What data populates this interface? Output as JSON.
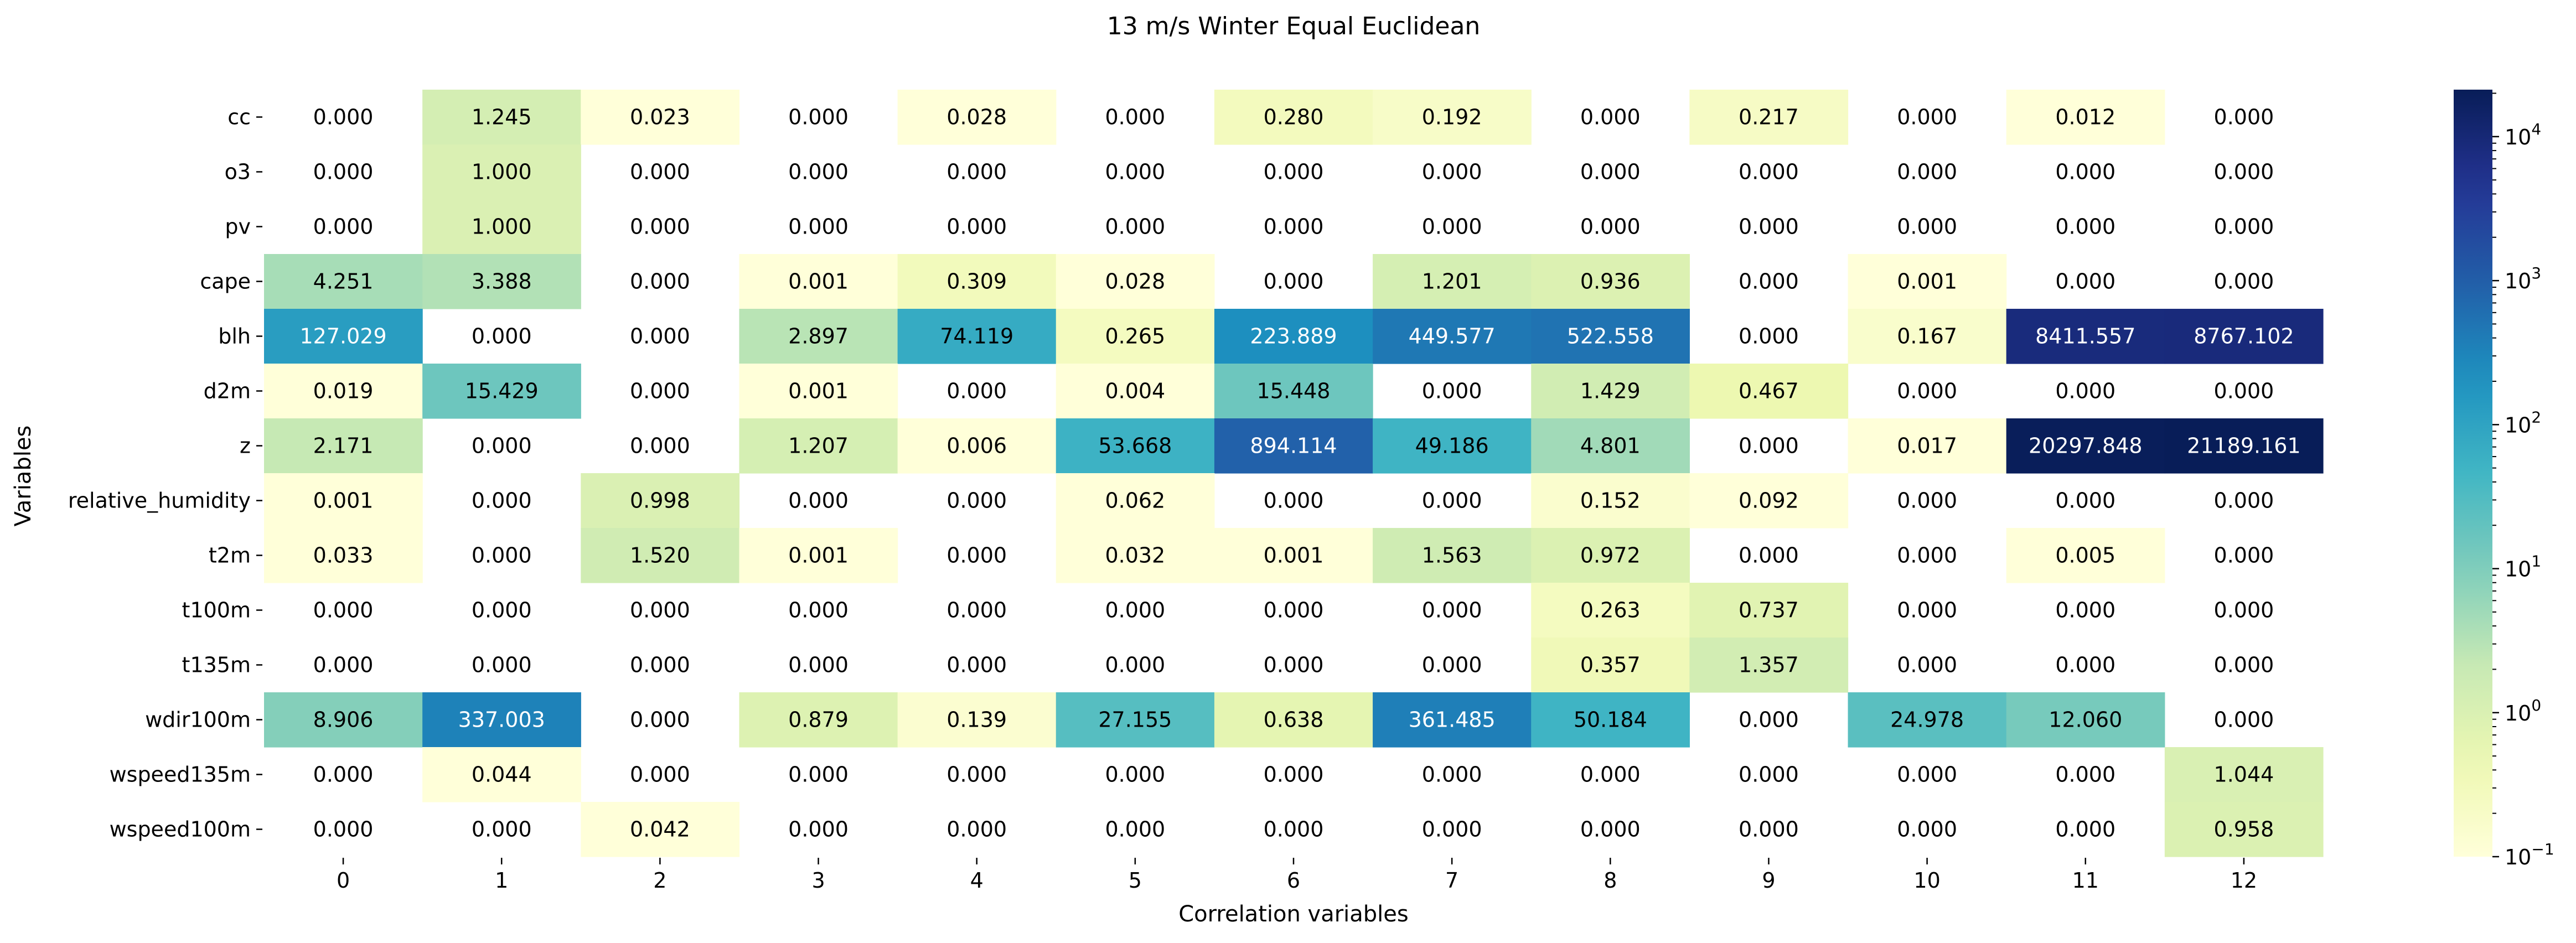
{
  "chart_data": {
    "type": "heatmap",
    "title": "13 m/s Winter Equal Euclidean",
    "xlabel": "Correlation variables",
    "ylabel": "Variables",
    "x_categories": [
      "0",
      "1",
      "2",
      "3",
      "4",
      "5",
      "6",
      "7",
      "8",
      "9",
      "10",
      "11",
      "12"
    ],
    "y_categories": [
      "cc",
      "o3",
      "pv",
      "cape",
      "blh",
      "d2m",
      "z",
      "relative_humidity",
      "t2m",
      "t100m",
      "t135m",
      "wdir100m",
      "wspeed135m",
      "wspeed100m"
    ],
    "values": [
      [
        "0.000",
        "1.245",
        "0.023",
        "0.000",
        "0.028",
        "0.000",
        "0.280",
        "0.192",
        "0.000",
        "0.217",
        "0.000",
        "0.012",
        "0.000"
      ],
      [
        "0.000",
        "1.000",
        "0.000",
        "0.000",
        "0.000",
        "0.000",
        "0.000",
        "0.000",
        "0.000",
        "0.000",
        "0.000",
        "0.000",
        "0.000"
      ],
      [
        "0.000",
        "1.000",
        "0.000",
        "0.000",
        "0.000",
        "0.000",
        "0.000",
        "0.000",
        "0.000",
        "0.000",
        "0.000",
        "0.000",
        "0.000"
      ],
      [
        "4.251",
        "3.388",
        "0.000",
        "0.001",
        "0.309",
        "0.028",
        "0.000",
        "1.201",
        "0.936",
        "0.000",
        "0.001",
        "0.000",
        "0.000"
      ],
      [
        "127.029",
        "0.000",
        "0.000",
        "2.897",
        "74.119",
        "0.265",
        "223.889",
        "449.577",
        "522.558",
        "0.000",
        "0.167",
        "8411.557",
        "8767.102"
      ],
      [
        "0.019",
        "15.429",
        "0.000",
        "0.001",
        "0.000",
        "0.004",
        "15.448",
        "0.000",
        "1.429",
        "0.467",
        "0.000",
        "0.000",
        "0.000"
      ],
      [
        "2.171",
        "0.000",
        "0.000",
        "1.207",
        "0.006",
        "53.668",
        "894.114",
        "49.186",
        "4.801",
        "0.000",
        "0.017",
        "20297.848",
        "21189.161"
      ],
      [
        "0.001",
        "0.000",
        "0.998",
        "0.000",
        "0.000",
        "0.062",
        "0.000",
        "0.000",
        "0.152",
        "0.092",
        "0.000",
        "0.000",
        "0.000"
      ],
      [
        "0.033",
        "0.000",
        "1.520",
        "0.001",
        "0.000",
        "0.032",
        "0.001",
        "1.563",
        "0.972",
        "0.000",
        "0.000",
        "0.005",
        "0.000"
      ],
      [
        "0.000",
        "0.000",
        "0.000",
        "0.000",
        "0.000",
        "0.000",
        "0.000",
        "0.000",
        "0.263",
        "0.737",
        "0.000",
        "0.000",
        "0.000"
      ],
      [
        "0.000",
        "0.000",
        "0.000",
        "0.000",
        "0.000",
        "0.000",
        "0.000",
        "0.000",
        "0.357",
        "1.357",
        "0.000",
        "0.000",
        "0.000"
      ],
      [
        "8.906",
        "337.003",
        "0.000",
        "0.879",
        "0.139",
        "27.155",
        "0.638",
        "361.485",
        "50.184",
        "0.000",
        "24.978",
        "12.060",
        "0.000"
      ],
      [
        "0.000",
        "0.044",
        "0.000",
        "0.000",
        "0.000",
        "0.000",
        "0.000",
        "0.000",
        "0.000",
        "0.000",
        "0.000",
        "0.000",
        "1.044"
      ],
      [
        "0.000",
        "0.000",
        "0.042",
        "0.000",
        "0.000",
        "0.000",
        "0.000",
        "0.000",
        "0.000",
        "0.000",
        "0.000",
        "0.000",
        "0.958"
      ]
    ],
    "colorbar": {
      "scale": "log",
      "colormap": "YlGnBu",
      "range": [
        0.1,
        21189.161
      ],
      "ticks": [
        {
          "value": 0.1,
          "base": "10",
          "exp": "−1"
        },
        {
          "value": 1,
          "base": "10",
          "exp": "0"
        },
        {
          "value": 10,
          "base": "10",
          "exp": "1"
        },
        {
          "value": 100,
          "base": "10",
          "exp": "2"
        },
        {
          "value": 1000,
          "base": "10",
          "exp": "3"
        },
        {
          "value": 10000,
          "base": "10",
          "exp": "4"
        }
      ]
    },
    "zero_cells": "blank (masked under log scale)"
  }
}
